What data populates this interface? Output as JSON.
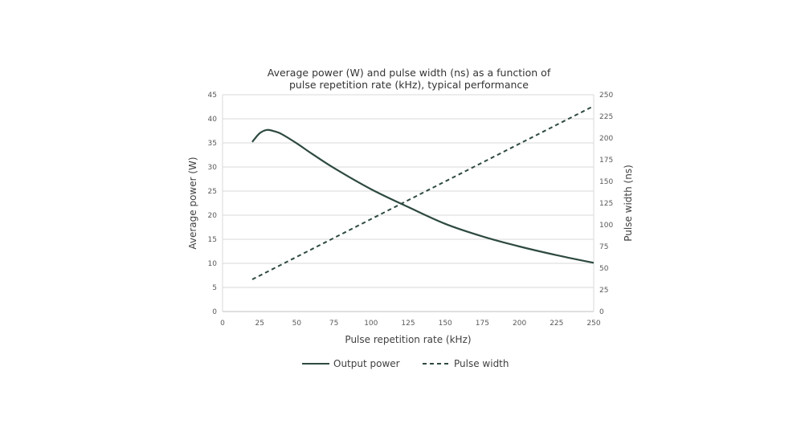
{
  "chart_data": {
    "type": "line",
    "title_line1": "Average power (W) and pulse width (ns) as a function of",
    "title_line2": "pulse repetition rate (kHz), typical performance",
    "xlabel": "Pulse repetition rate (kHz)",
    "ylabel_left": "Average power (W)",
    "ylabel_right": "Pulse width (ns)",
    "xlim": [
      0,
      250
    ],
    "ylim_left": [
      0,
      45
    ],
    "ylim_right": [
      0,
      250
    ],
    "x_ticks": [
      0,
      25,
      50,
      75,
      100,
      125,
      150,
      175,
      200,
      225,
      250
    ],
    "y_left_ticks": [
      0,
      5,
      10,
      15,
      20,
      25,
      30,
      35,
      40,
      45
    ],
    "y_right_ticks": [
      0,
      25,
      50,
      75,
      100,
      125,
      150,
      175,
      200,
      225,
      250
    ],
    "grid": "horizontal",
    "legend_position": "bottom",
    "series": [
      {
        "name": "Output power",
        "axis": "left",
        "style": "solid",
        "color": "#2e4a40",
        "x": [
          20,
          25,
          30,
          35,
          40,
          50,
          60,
          75,
          100,
          125,
          150,
          175,
          200,
          225,
          250
        ],
        "y": [
          35.2,
          37.0,
          37.7,
          37.4,
          36.8,
          34.9,
          32.8,
          29.8,
          25.4,
          21.7,
          18.2,
          15.6,
          13.5,
          11.7,
          10.1
        ]
      },
      {
        "name": "Pulse width",
        "axis": "right",
        "style": "dashed",
        "color": "#2e4a40",
        "x": [
          20,
          250
        ],
        "y": [
          37,
          237
        ]
      }
    ]
  }
}
